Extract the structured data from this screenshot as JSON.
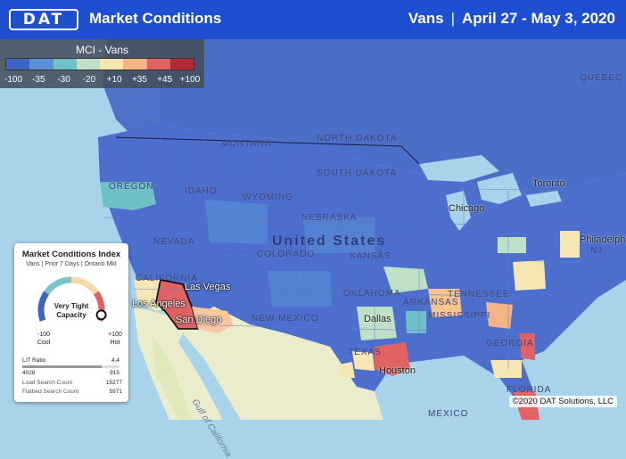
{
  "header": {
    "logo_text": "DAT",
    "title": "Market Conditions",
    "equipment": "Vans",
    "separator": "|",
    "date_range": "April 27 - May 3, 2020"
  },
  "legend": {
    "title": "MCI - Vans",
    "colors": [
      "#3d63c7",
      "#5b8fd6",
      "#6fc1c9",
      "#bfe0c6",
      "#f6e6b3",
      "#f4b487",
      "#e06262",
      "#b8283b"
    ],
    "ticks": [
      "-100",
      "-35",
      "-30",
      "-20",
      "+10",
      "+35",
      "+45",
      "+100"
    ]
  },
  "map": {
    "country_label": "United States",
    "regions": [
      "MONTANA",
      "NORTH DAKOTA",
      "SOUTH DAKOTA",
      "IDAHO",
      "OREGON",
      "WYOMING",
      "NEBRASKA",
      "NEVADA",
      "COLORADO",
      "KANSAS",
      "CALIFORNIA",
      "NEW MEXICO",
      "OKLAHOMA",
      "TEXAS",
      "ARKANSAS",
      "MISSISSIPPI",
      "TENNESSEE",
      "GEORGIA",
      "FLORIDA",
      "QUEBEC",
      "NJ",
      "MEXICO",
      "Gulf of California"
    ],
    "cities": [
      "Las Vegas",
      "Los Angeles",
      "San Diego",
      "Dallas",
      "Houston",
      "Chicago",
      "Toronto",
      "Philadelphia"
    ]
  },
  "card": {
    "title": "Market Conditions Index",
    "subtitle": "Vans | Prior 7 Days | Ontario Mkt",
    "gauge_status": "Very Tight Capacity",
    "gauge_value": 0.95,
    "min_value": "-100",
    "min_label": "Cool",
    "max_value": "+100",
    "max_label": "Hot",
    "lt_ratio_label": "L/T Ratio",
    "lt_ratio_value": "4.4",
    "loads": "4026",
    "trucks": "915",
    "load_search_label": "Load Search Count",
    "load_search_value": "15277",
    "flatbed_search_label": "Flatbed Search Count",
    "flatbed_search_value": "5971"
  },
  "copyright": "©2020 DAT Solutions, LLC"
}
